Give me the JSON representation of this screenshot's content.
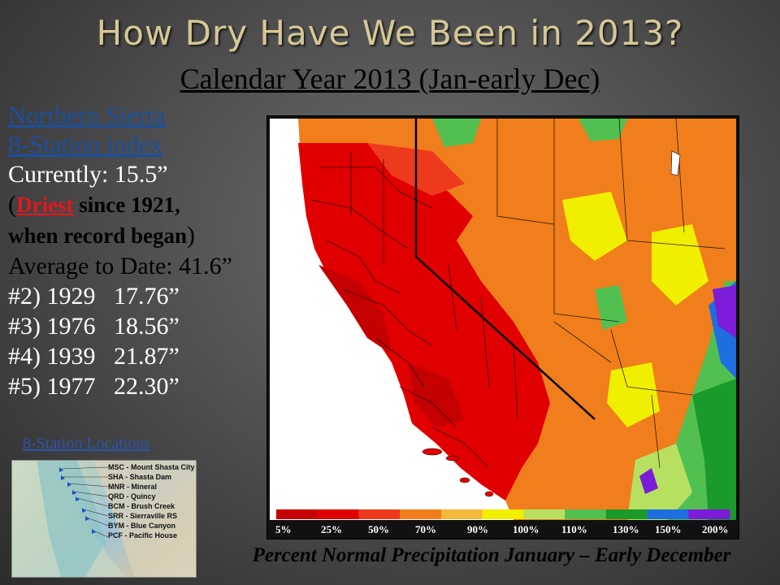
{
  "slide": {
    "title": "How Dry Have We Been in 2013?",
    "subtitle": "Calendar Year 2013 (Jan-early Dec)"
  },
  "stats": {
    "region_line1": "Northern Sierra",
    "region_line2": "8-Station index",
    "currently": "Currently: 15.5”",
    "paren_open": "(",
    "driest": "Driest",
    "since": " since 1921,",
    "record_began": "when record began",
    "paren_close": ")",
    "average": "Average to Date: 41.6”",
    "ranks": [
      "#2) 1929   17.76”",
      "#3) 1976   18.56”",
      "#4) 1939   21.87”",
      "#5) 1977   22.30”"
    ]
  },
  "locations": {
    "title": "8-Station Locations",
    "stations": [
      "MSC - Mount Shasta City",
      "SHA - Shasta Dam",
      "MNR - Mineral",
      "QRD - Quincy",
      "BCM - Brush Creek",
      "SRR - Sierraville RS",
      "BYM - Blue Canyon",
      "PCF - Pacific House"
    ]
  },
  "map": {
    "legend": {
      "labels": [
        "5%",
        "25%",
        "50%",
        "70%",
        "90%",
        "100%",
        "110%",
        "130%",
        "150%",
        "200%"
      ],
      "colors": [
        "#c40000",
        "#e10000",
        "#ee3a1c",
        "#f07e1c",
        "#f4b83c",
        "#f0ef00",
        "#b8e060",
        "#52c050",
        "#1a9a2a",
        "#1e6ee0",
        "#7c1cd8"
      ]
    },
    "caption": "Percent Normal Precipitation January – Early December"
  }
}
